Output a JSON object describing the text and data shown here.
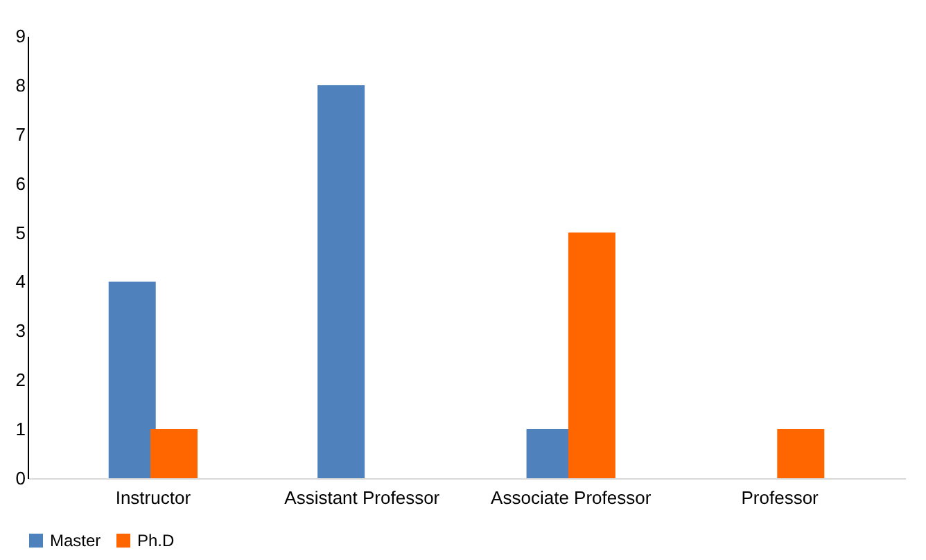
{
  "chart_data": {
    "type": "bar",
    "categories": [
      "Instructor",
      "Assistant Professor",
      "Associate Professor",
      "Professor"
    ],
    "series": [
      {
        "name": "Master",
        "color": "#4f81bd",
        "values": [
          4,
          8,
          1,
          0
        ]
      },
      {
        "name": "Ph.D",
        "color": "#ff6600",
        "values": [
          1,
          0,
          5,
          1
        ]
      }
    ],
    "ylim": [
      0,
      9
    ],
    "yticks": [
      0,
      1,
      2,
      3,
      4,
      5,
      6,
      7,
      8,
      9
    ],
    "grid": false,
    "legend": "bottom"
  }
}
